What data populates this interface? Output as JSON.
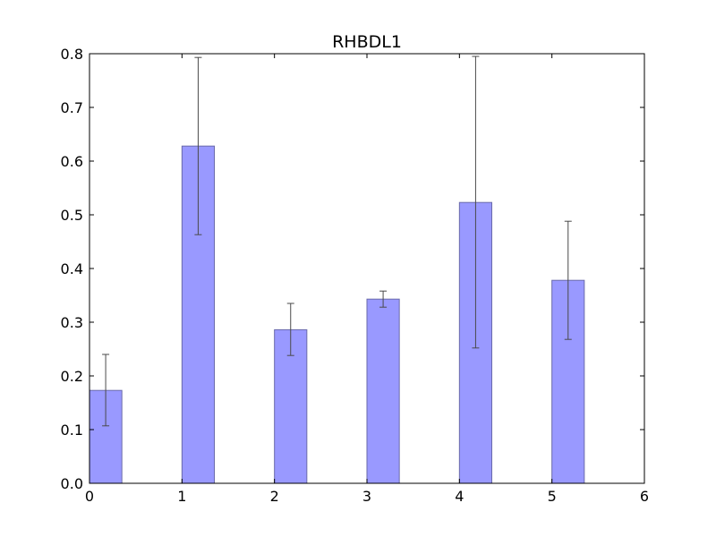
{
  "chart_data": {
    "type": "bar",
    "title": "RHBDL1",
    "xlabel": "",
    "ylabel": "",
    "x": [
      0,
      1,
      2,
      3,
      4,
      5
    ],
    "values": [
      0.173,
      0.628,
      0.286,
      0.343,
      0.523,
      0.378
    ],
    "errors": [
      [
        0.107,
        0.24
      ],
      [
        0.463,
        0.793
      ],
      [
        0.238,
        0.335
      ],
      [
        0.328,
        0.358
      ],
      [
        0.252,
        0.795
      ],
      [
        0.268,
        0.488
      ]
    ],
    "bar_width": 0.35,
    "xlim": [
      0,
      6
    ],
    "ylim": [
      0,
      0.8
    ],
    "xticks": [
      "0",
      "1",
      "2",
      "3",
      "4",
      "5",
      "6"
    ],
    "yticks": [
      "0.0",
      "0.1",
      "0.2",
      "0.3",
      "0.4",
      "0.5",
      "0.6",
      "0.7",
      "0.8"
    ],
    "grid": false,
    "legend": "none",
    "colors": {
      "bar_fill": "#9999ff",
      "bar_edge": "#6a6aaa",
      "error": "#4a4a4a",
      "axes": "#000000"
    }
  }
}
